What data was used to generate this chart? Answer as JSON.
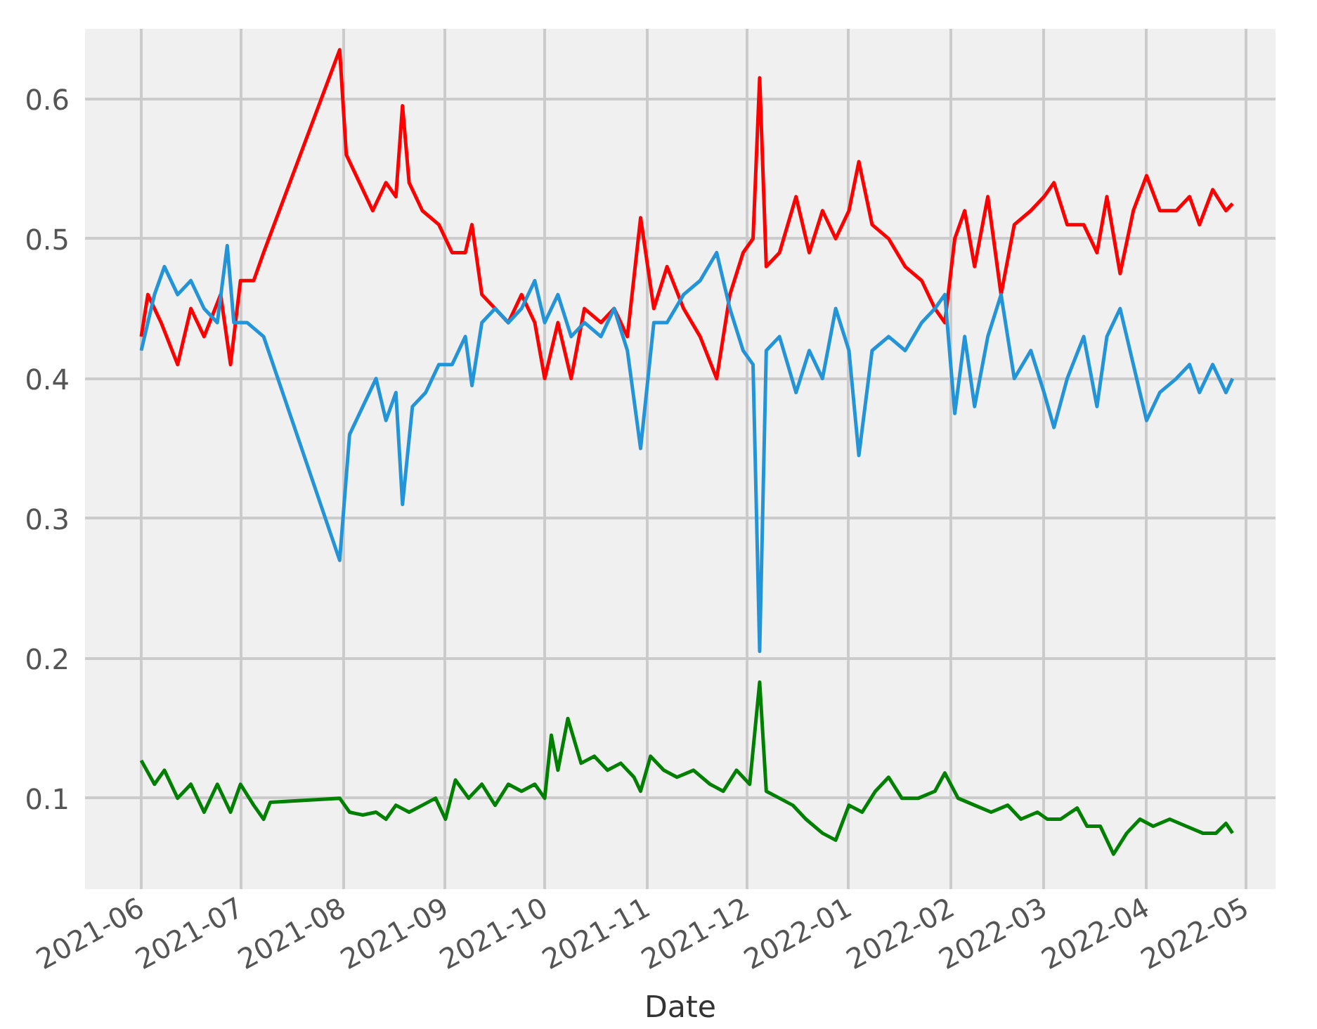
{
  "chart_data": {
    "type": "line",
    "xlabel": "Date",
    "xlim": [
      "2021-05-15",
      "2022-05-10"
    ],
    "ylim": [
      0.035,
      0.65
    ],
    "xticks": [
      "2021-06",
      "2021-07",
      "2021-08",
      "2021-09",
      "2021-10",
      "2021-11",
      "2021-12",
      "2022-01",
      "2022-02",
      "2022-03",
      "2022-04",
      "2022-05"
    ],
    "yticks": [
      0.1,
      0.2,
      0.3,
      0.4,
      0.5,
      0.6
    ],
    "grid": true,
    "line_style": "solid",
    "marker": "none",
    "series": [
      {
        "color": "#ff0000",
        "x": [
          "2021-06-01",
          "2021-06-03",
          "2021-06-07",
          "2021-06-12",
          "2021-06-16",
          "2021-06-20",
          "2021-06-25",
          "2021-06-28",
          "2021-07-01",
          "2021-07-05",
          "2021-07-08",
          "2021-07-31",
          "2021-08-02",
          "2021-08-06",
          "2021-08-10",
          "2021-08-14",
          "2021-08-17",
          "2021-08-19",
          "2021-08-21",
          "2021-08-25",
          "2021-08-30",
          "2021-09-03",
          "2021-09-07",
          "2021-09-09",
          "2021-09-12",
          "2021-09-16",
          "2021-09-20",
          "2021-09-24",
          "2021-09-28",
          "2021-10-01",
          "2021-10-05",
          "2021-10-09",
          "2021-10-13",
          "2021-10-18",
          "2021-10-22",
          "2021-10-26",
          "2021-10-30",
          "2021-11-03",
          "2021-11-07",
          "2021-11-12",
          "2021-11-17",
          "2021-11-22",
          "2021-11-26",
          "2021-11-30",
          "2021-12-03",
          "2021-12-05",
          "2021-12-07",
          "2021-12-11",
          "2021-12-16",
          "2021-12-20",
          "2021-12-24",
          "2021-12-28",
          "2022-01-01",
          "2022-01-04",
          "2022-01-08",
          "2022-01-13",
          "2022-01-18",
          "2022-01-23",
          "2022-01-27",
          "2022-01-30",
          "2022-02-02",
          "2022-02-05",
          "2022-02-08",
          "2022-02-12",
          "2022-02-16",
          "2022-02-20",
          "2022-02-25",
          "2022-03-01",
          "2022-03-04",
          "2022-03-08",
          "2022-03-13",
          "2022-03-17",
          "2022-03-20",
          "2022-03-24",
          "2022-03-28",
          "2022-04-01",
          "2022-04-05",
          "2022-04-10",
          "2022-04-14",
          "2022-04-17",
          "2022-04-21",
          "2022-04-25",
          "2022-04-27"
        ],
        "values": [
          0.43,
          0.46,
          0.44,
          0.41,
          0.45,
          0.43,
          0.46,
          0.41,
          0.47,
          0.47,
          0.49,
          0.635,
          0.56,
          0.54,
          0.52,
          0.54,
          0.53,
          0.595,
          0.54,
          0.52,
          0.51,
          0.49,
          0.49,
          0.51,
          0.46,
          0.45,
          0.44,
          0.46,
          0.44,
          0.4,
          0.44,
          0.4,
          0.45,
          0.44,
          0.45,
          0.43,
          0.515,
          0.45,
          0.48,
          0.45,
          0.43,
          0.4,
          0.46,
          0.49,
          0.5,
          0.615,
          0.48,
          0.49,
          0.53,
          0.49,
          0.52,
          0.5,
          0.52,
          0.555,
          0.51,
          0.5,
          0.48,
          0.47,
          0.45,
          0.44,
          0.5,
          0.52,
          0.48,
          0.53,
          0.46,
          0.51,
          0.52,
          0.53,
          0.54,
          0.51,
          0.51,
          0.49,
          0.53,
          0.475,
          0.52,
          0.545,
          0.52,
          0.52,
          0.53,
          0.51,
          0.535,
          0.52,
          0.525
        ]
      },
      {
        "color": "#2494d8",
        "x": [
          "2021-06-01",
          "2021-06-05",
          "2021-06-08",
          "2021-06-12",
          "2021-06-16",
          "2021-06-20",
          "2021-06-24",
          "2021-06-27",
          "2021-06-29",
          "2021-07-03",
          "2021-07-08",
          "2021-07-31",
          "2021-08-03",
          "2021-08-07",
          "2021-08-11",
          "2021-08-14",
          "2021-08-17",
          "2021-08-19",
          "2021-08-22",
          "2021-08-26",
          "2021-08-30",
          "2021-09-03",
          "2021-09-07",
          "2021-09-09",
          "2021-09-12",
          "2021-09-16",
          "2021-09-20",
          "2021-09-24",
          "2021-09-28",
          "2021-10-01",
          "2021-10-05",
          "2021-10-09",
          "2021-10-13",
          "2021-10-18",
          "2021-10-22",
          "2021-10-26",
          "2021-10-30",
          "2021-11-03",
          "2021-11-07",
          "2021-11-12",
          "2021-11-17",
          "2021-11-22",
          "2021-11-26",
          "2021-11-30",
          "2021-12-03",
          "2021-12-05",
          "2021-12-07",
          "2021-12-11",
          "2021-12-16",
          "2021-12-20",
          "2021-12-24",
          "2021-12-28",
          "2022-01-01",
          "2022-01-04",
          "2022-01-08",
          "2022-01-13",
          "2022-01-18",
          "2022-01-23",
          "2022-01-27",
          "2022-01-30",
          "2022-02-02",
          "2022-02-05",
          "2022-02-08",
          "2022-02-12",
          "2022-02-16",
          "2022-02-20",
          "2022-02-25",
          "2022-03-01",
          "2022-03-04",
          "2022-03-08",
          "2022-03-13",
          "2022-03-17",
          "2022-03-20",
          "2022-03-24",
          "2022-03-28",
          "2022-04-01",
          "2022-04-05",
          "2022-04-10",
          "2022-04-14",
          "2022-04-17",
          "2022-04-21",
          "2022-04-25",
          "2022-04-27"
        ],
        "values": [
          0.42,
          0.46,
          0.48,
          0.46,
          0.47,
          0.45,
          0.44,
          0.495,
          0.44,
          0.44,
          0.43,
          0.27,
          0.36,
          0.38,
          0.4,
          0.37,
          0.39,
          0.31,
          0.38,
          0.39,
          0.41,
          0.41,
          0.43,
          0.395,
          0.44,
          0.45,
          0.44,
          0.45,
          0.47,
          0.44,
          0.46,
          0.43,
          0.44,
          0.43,
          0.45,
          0.42,
          0.35,
          0.44,
          0.44,
          0.46,
          0.47,
          0.49,
          0.45,
          0.42,
          0.41,
          0.205,
          0.42,
          0.43,
          0.39,
          0.42,
          0.4,
          0.45,
          0.42,
          0.345,
          0.42,
          0.43,
          0.42,
          0.44,
          0.45,
          0.46,
          0.375,
          0.43,
          0.38,
          0.43,
          0.46,
          0.4,
          0.42,
          0.39,
          0.365,
          0.4,
          0.43,
          0.38,
          0.43,
          0.45,
          0.41,
          0.37,
          0.39,
          0.4,
          0.41,
          0.39,
          0.41,
          0.39,
          0.4
        ]
      },
      {
        "color": "#008000",
        "x": [
          "2021-06-01",
          "2021-06-05",
          "2021-06-08",
          "2021-06-12",
          "2021-06-16",
          "2021-06-20",
          "2021-06-24",
          "2021-06-28",
          "2021-07-01",
          "2021-07-05",
          "2021-07-08",
          "2021-07-10",
          "2021-07-31",
          "2021-08-03",
          "2021-08-07",
          "2021-08-11",
          "2021-08-14",
          "2021-08-17",
          "2021-08-21",
          "2021-08-25",
          "2021-08-29",
          "2021-09-01",
          "2021-09-04",
          "2021-09-08",
          "2021-09-12",
          "2021-09-16",
          "2021-09-20",
          "2021-09-24",
          "2021-09-28",
          "2021-10-01",
          "2021-10-03",
          "2021-10-05",
          "2021-10-08",
          "2021-10-12",
          "2021-10-16",
          "2021-10-20",
          "2021-10-24",
          "2021-10-28",
          "2021-10-30",
          "2021-11-02",
          "2021-11-06",
          "2021-11-10",
          "2021-11-15",
          "2021-11-20",
          "2021-11-24",
          "2021-11-28",
          "2021-12-02",
          "2021-12-05",
          "2021-12-07",
          "2021-12-11",
          "2021-12-15",
          "2021-12-19",
          "2021-12-24",
          "2021-12-28",
          "2022-01-01",
          "2022-01-05",
          "2022-01-09",
          "2022-01-13",
          "2022-01-17",
          "2022-01-22",
          "2022-01-27",
          "2022-01-30",
          "2022-02-03",
          "2022-02-08",
          "2022-02-13",
          "2022-02-18",
          "2022-02-22",
          "2022-02-27",
          "2022-03-02",
          "2022-03-06",
          "2022-03-11",
          "2022-03-14",
          "2022-03-18",
          "2022-03-22",
          "2022-03-26",
          "2022-03-30",
          "2022-04-03",
          "2022-04-08",
          "2022-04-13",
          "2022-04-18",
          "2022-04-22",
          "2022-04-25",
          "2022-04-27"
        ],
        "values": [
          0.127,
          0.11,
          0.12,
          0.1,
          0.11,
          0.09,
          0.11,
          0.09,
          0.11,
          0.095,
          0.085,
          0.097,
          0.1,
          0.09,
          0.088,
          0.09,
          0.085,
          0.095,
          0.09,
          0.095,
          0.1,
          0.085,
          0.113,
          0.1,
          0.11,
          0.095,
          0.11,
          0.105,
          0.11,
          0.1,
          0.145,
          0.12,
          0.157,
          0.125,
          0.13,
          0.12,
          0.125,
          0.115,
          0.105,
          0.13,
          0.12,
          0.115,
          0.12,
          0.11,
          0.105,
          0.12,
          0.11,
          0.183,
          0.105,
          0.1,
          0.095,
          0.085,
          0.075,
          0.07,
          0.095,
          0.09,
          0.105,
          0.115,
          0.1,
          0.1,
          0.105,
          0.118,
          0.1,
          0.095,
          0.09,
          0.095,
          0.085,
          0.09,
          0.085,
          0.085,
          0.093,
          0.08,
          0.08,
          0.06,
          0.075,
          0.085,
          0.08,
          0.085,
          0.08,
          0.075,
          0.075,
          0.082,
          0.075
        ]
      }
    ]
  }
}
